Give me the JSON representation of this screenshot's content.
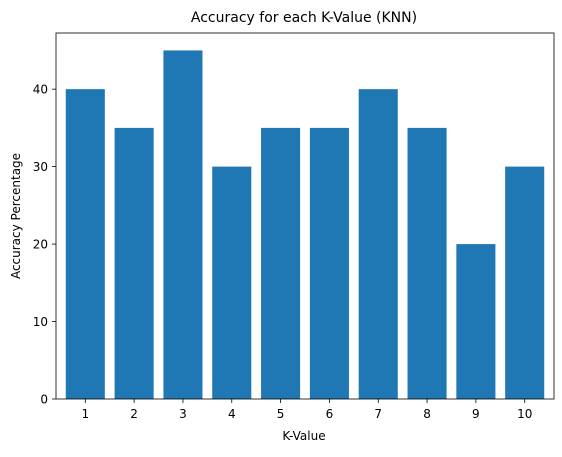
{
  "chart_data": {
    "type": "bar",
    "title": "Accuracy for each K-Value (KNN)",
    "xlabel": "K-Value",
    "ylabel": "Accuracy Percentage",
    "categories": [
      "1",
      "2",
      "3",
      "4",
      "5",
      "6",
      "7",
      "8",
      "9",
      "10"
    ],
    "values": [
      40,
      35,
      45,
      30,
      35,
      35,
      40,
      35,
      20,
      30
    ],
    "ylim": [
      0,
      47.25
    ],
    "yticks": [
      0,
      10,
      20,
      30,
      40
    ],
    "grid": false,
    "legend": "none",
    "bar_color": "#1f77b4"
  }
}
